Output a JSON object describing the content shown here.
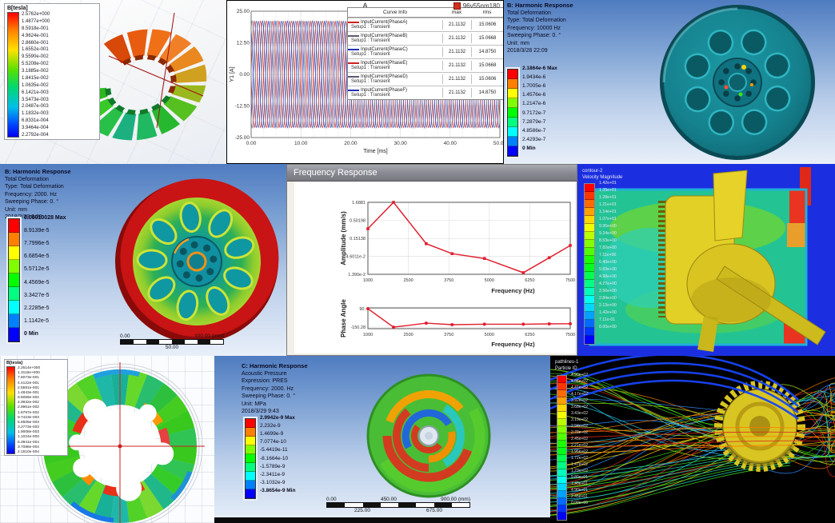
{
  "panels": {
    "maxwell_torus": {
      "legend_title": "B[tesla]",
      "legend_values": [
        "2.5762e+000",
        "1.4877e+000",
        "8.5918e-001",
        "4.9624e-001",
        "2.8660e-001",
        "1.6552e-001",
        "9.5590e-002",
        "5.5208e-002",
        "3.1885e-002",
        "1.8415e-002",
        "1.0635e-002",
        "6.1421e-003",
        "3.5473e-003",
        "2.0487e-003",
        "1.1832e-003",
        "6.8331e-004",
        "3.9464e-004",
        "2.2792e-004"
      ]
    },
    "current_plot": {
      "title": "A",
      "model_label": "96v55nm180",
      "ylabel": "Y1 [A]",
      "xlabel": "Time [ms]",
      "y_ticks": [
        "25.00",
        "12.50",
        "0.00",
        "-12.50",
        "-25.00"
      ],
      "x_ticks": [
        "0.00",
        "10.00",
        "20.00",
        "30.00",
        "40.00",
        "50.00"
      ],
      "legend": {
        "headers": [
          "Curve Info",
          "max",
          "rms"
        ],
        "rows": [
          {
            "name": "InputCurrent(PhaseA)",
            "setup": "Setup1 : Transient",
            "max": "21.1132",
            "rms": "15.0606",
            "color": "#d02020"
          },
          {
            "name": "InputCurrent(PhaseB)",
            "setup": "Setup1 : Transient",
            "max": "21.1132",
            "rms": "15.0668",
            "color": "#5a5a72"
          },
          {
            "name": "InputCurrent(PhaseC)",
            "setup": "Setup1 : Transient",
            "max": "21.1132",
            "rms": "14.8750",
            "color": "#2233b2"
          },
          {
            "name": "InputCurrent(PhaseE)",
            "setup": "Setup1 : Transient",
            "max": "21.1132",
            "rms": "15.0668",
            "color": "#d02020"
          },
          {
            "name": "InputCurrent(PhaseD)",
            "setup": "Setup1 : Transient",
            "max": "21.1132",
            "rms": "15.0606",
            "color": "#5a5a72"
          },
          {
            "name": "InputCurrent(PhaseF)",
            "setup": "Setup1 : Transient",
            "max": "21.1132",
            "rms": "14.8750",
            "color": "#2233b2"
          }
        ]
      }
    },
    "harmonic_b_10000": {
      "title": "B: Harmonic Response",
      "lines": [
        "Total Deformation",
        "Type: Total Deformation",
        "Frequency: 10000 Hz",
        "Sweeping Phase: 0. °",
        "Unit: mm",
        "2018/3/28 22:09"
      ],
      "colorbar": [
        "2.1864e-6 Max",
        "1.9434e-6",
        "1.7005e-6",
        "1.4576e-6",
        "1.2147e-6",
        "9.7172e-7",
        "7.2879e-7",
        "4.8586e-7",
        "2.4293e-7",
        "0 Min"
      ]
    },
    "harmonic_b_2000": {
      "title": "B: Harmonic Response",
      "lines": [
        "Total Deformation",
        "Type: Total Deformation",
        "Frequency: 2000. Hz",
        "Sweeping Phase: 0. °",
        "Unit: mm",
        "2018/3/29 9:38"
      ],
      "colorbar": [
        "0.00010028 Max",
        "8.9139e-5",
        "7.7996e-5",
        "6.6854e-5",
        "5.5712e-5",
        "4.4569e-5",
        "3.3427e-5",
        "2.2285e-5",
        "1.1142e-5",
        "0 Min"
      ],
      "ruler_top": [
        "0.00",
        "100.00 (mm)"
      ],
      "ruler_mid": "50.00"
    },
    "freq_response": {
      "window_title": "Frequency Response",
      "amp_ylabel": "Amplitude (mm/s)",
      "phase_ylabel": "Phase Angle",
      "xlabel": "Frequency (Hz)",
      "amp_yticks": [
        "1.6881",
        "0.50198",
        "0.15138",
        "4.6011e-2",
        "1.390e-2"
      ],
      "phase_yticks": [
        "90.",
        "-150.28"
      ],
      "x_ticks": [
        "1000",
        "2500",
        "3750",
        "5000",
        "6250",
        "7500"
      ]
    },
    "cfd_velocity": {
      "legend_header": [
        "contour-2",
        "Velocity Magnitude"
      ],
      "values": [
        "1.42e+01",
        "1.35e+01",
        "1.28e+01",
        "1.21e+01",
        "1.14e+01",
        "1.07e+01",
        "9.95e+00",
        "9.24e+00",
        "8.53e+00",
        "7.82e+00",
        "7.11e+00",
        "6.40e+00",
        "5.69e+00",
        "4.98e+00",
        "4.27e+00",
        "3.56e+00",
        "2.84e+00",
        "2.13e+00",
        "1.42e+00",
        "7.11e-01",
        "0.00e+00"
      ]
    },
    "maxwell_ring": {
      "legend_title": "B[tesla]",
      "legend_values": [
        "2.2614e+000",
        "1.3116e+000",
        "7.6073e-001",
        "4.4122e-001",
        "2.5591e-001",
        "1.4843e-001",
        "8.6089e-002",
        "4.9932e-002",
        "2.8961e-002",
        "1.6797e-002",
        "9.7423e-003",
        "5.6505e-003",
        "3.2773e-003",
        "1.9008e-003",
        "1.1024e-003",
        "6.3941e-004",
        "3.7086e-004",
        "2.1510e-004"
      ]
    },
    "acoustic": {
      "title": "C: Harmonic Response",
      "lines": [
        "Acoustic Pressure",
        "Expression: PRES",
        "Frequency: 2000. Hz",
        "Sweeping Phase: 0. °",
        "Unit: MPa",
        "2018/3/29 9:43"
      ],
      "colorbar": [
        "2.9942e-9 Max",
        "2.232e-9",
        "1.4699e-9",
        "7.0774e-10",
        "-5.4419e-11",
        "-8.1664e-10",
        "-1.5789e-9",
        "-2.3411e-9",
        "-3.1032e-9",
        "-3.8654e-9 Min"
      ],
      "ruler_top": [
        "0.00",
        "450.00",
        "900.00 (mm)"
      ],
      "ruler_bottom": [
        "225.00",
        "675.00"
      ]
    },
    "pathlines": {
      "legend_header": [
        "pathlines-1",
        "Particle ID"
      ],
      "values": [
        "4.90e+02",
        "4.66e+02",
        "4.41e+02",
        "4.17e+02",
        "3.92e+02",
        "3.68e+02",
        "3.43e+02",
        "3.19e+02",
        "2.94e+02",
        "2.70e+02",
        "2.45e+02",
        "2.21e+02",
        "1.96e+02",
        "1.72e+02",
        "1.47e+02",
        "1.23e+02",
        "9.80e+01",
        "7.35e+01",
        "4.90e+01",
        "2.45e+01",
        "0.00e+00"
      ]
    }
  },
  "chart_data": [
    {
      "type": "line",
      "title": "A",
      "subtitle": "96v55nm180",
      "xlabel": "Time [ms]",
      "ylabel": "Y1 [A]",
      "xlim": [
        0,
        50
      ],
      "ylim": [
        -25,
        25
      ],
      "x_ticks": [
        0,
        10,
        20,
        30,
        40,
        50
      ],
      "y_ticks": [
        25,
        12.5,
        0,
        -12.5,
        -25
      ],
      "grid": true,
      "legend_position": "top-right",
      "series_model": "sinusoid",
      "series": [
        {
          "name": "InputCurrent(PhaseA)",
          "amplitude": 21.1132,
          "cycles_per_ms": 0.4,
          "phase_deg": 0,
          "max": 21.1132,
          "rms": 15.0606,
          "color": "#d02020"
        },
        {
          "name": "InputCurrent(PhaseB)",
          "amplitude": 21.1132,
          "cycles_per_ms": 0.4,
          "phase_deg": 60,
          "max": 21.1132,
          "rms": 15.0668,
          "color": "#5a5a72"
        },
        {
          "name": "InputCurrent(PhaseC)",
          "amplitude": 21.1132,
          "cycles_per_ms": 0.4,
          "phase_deg": 120,
          "max": 21.1132,
          "rms": 14.875,
          "color": "#2233b2"
        },
        {
          "name": "InputCurrent(PhaseE)",
          "amplitude": 21.1132,
          "cycles_per_ms": 0.4,
          "phase_deg": 180,
          "max": 21.1132,
          "rms": 15.0668,
          "color": "#d02020"
        },
        {
          "name": "InputCurrent(PhaseD)",
          "amplitude": 21.1132,
          "cycles_per_ms": 0.4,
          "phase_deg": 240,
          "max": 21.1132,
          "rms": 15.0606,
          "color": "#5a5a72"
        },
        {
          "name": "InputCurrent(PhaseF)",
          "amplitude": 21.1132,
          "cycles_per_ms": 0.4,
          "phase_deg": 300,
          "max": 21.1132,
          "rms": 14.875,
          "color": "#2233b2"
        }
      ]
    },
    {
      "type": "line",
      "title": "Frequency Response - Amplitude",
      "xlabel": "Frequency (Hz)",
      "ylabel": "Amplitude (mm/s)",
      "yscale": "log",
      "x_ticks": [
        1000,
        2500,
        3750,
        5000,
        6250,
        7500
      ],
      "y_tick_values": [
        1.6881,
        0.50198,
        0.15138,
        0.046011,
        0.0139
      ],
      "x": [
        1000,
        1950,
        3050,
        3850,
        4850,
        6050,
        6850,
        7600
      ],
      "y": [
        0.29,
        1.6881,
        0.107,
        0.055,
        0.04,
        0.0155,
        0.042,
        0.095
      ],
      "color": "#e02030",
      "grid": true
    },
    {
      "type": "line",
      "title": "Frequency Response - Phase",
      "xlabel": "Frequency (Hz)",
      "ylabel": "Phase Angle",
      "x_ticks": [
        1000,
        2500,
        3750,
        5000,
        6250,
        7500
      ],
      "y_tick_values": [
        90,
        -150.28
      ],
      "x": [
        1000,
        1950,
        3050,
        3850,
        4850,
        6050,
        6850,
        7600
      ],
      "y": [
        90,
        -150,
        -98,
        -118,
        -112,
        -112,
        -108,
        -106
      ],
      "color": "#e02030",
      "grid": true
    }
  ]
}
